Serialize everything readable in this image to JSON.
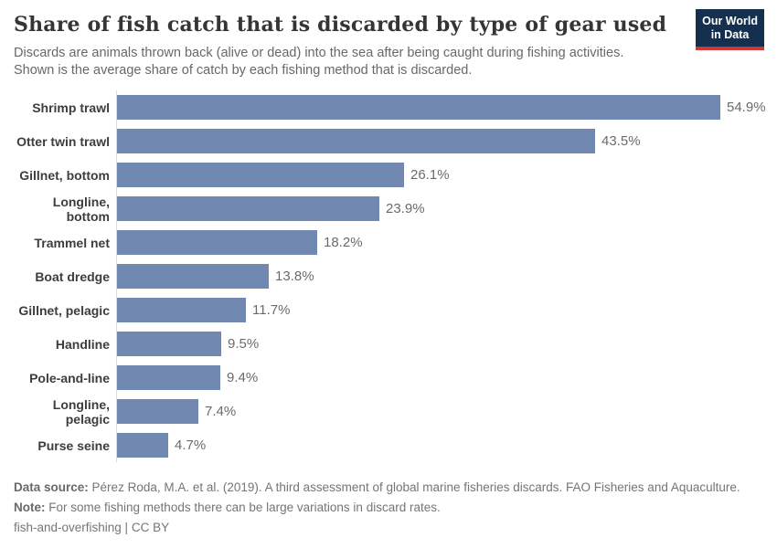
{
  "header": {
    "title": "Share of fish catch that is discarded by type of gear used",
    "subtitle_lines": [
      "Discards are animals thrown back (alive or dead) into the sea after being caught during fishing activities.",
      "Shown is the average share of catch by each fishing method that is discarded."
    ],
    "logo": {
      "line1": "Our World",
      "line2": "in Data"
    }
  },
  "chart_data": {
    "type": "bar",
    "orientation": "horizontal",
    "title": "Share of fish catch that is discarded by type of gear used",
    "categories": [
      "Shrimp trawl",
      "Otter twin trawl",
      "Gillnet, bottom",
      "Longline, bottom",
      "Trammel net",
      "Boat dredge",
      "Gillnet, pelagic",
      "Handline",
      "Pole-and-line",
      "Longline, pelagic",
      "Purse seine"
    ],
    "values": [
      54.9,
      43.5,
      26.1,
      23.9,
      18.2,
      13.8,
      11.7,
      9.5,
      9.4,
      7.4,
      4.7
    ],
    "value_labels": [
      "54.9%",
      "43.5%",
      "26.1%",
      "23.9%",
      "18.2%",
      "13.8%",
      "11.7%",
      "9.5%",
      "9.4%",
      "7.4%",
      "4.7%"
    ],
    "unit": "%",
    "xlim": [
      0,
      60
    ],
    "grid": false,
    "legend": "none",
    "value_label_position": "end-of-bar",
    "bar_color": "#7189b1"
  },
  "colors": {
    "bar": "#7189b1",
    "axis_line": "#dcdcdc",
    "logo_bg": "#14304e",
    "logo_accent": "#cc3b33",
    "title_text": "#353535",
    "subtitle_text": "#686868",
    "category_text": "#3d3d3d",
    "value_text": "#6b6b6b",
    "footer_text": "#757575"
  },
  "footer": {
    "source_label": "Data source:",
    "source_text": "Pérez Roda, M.A. et al. (2019). A third assessment of global marine fisheries discards. FAO Fisheries and Aquaculture.",
    "note_label": "Note:",
    "note_text": "For some fishing methods there can be large variations in discard rates.",
    "license": "fish-and-overfishing | CC BY"
  }
}
